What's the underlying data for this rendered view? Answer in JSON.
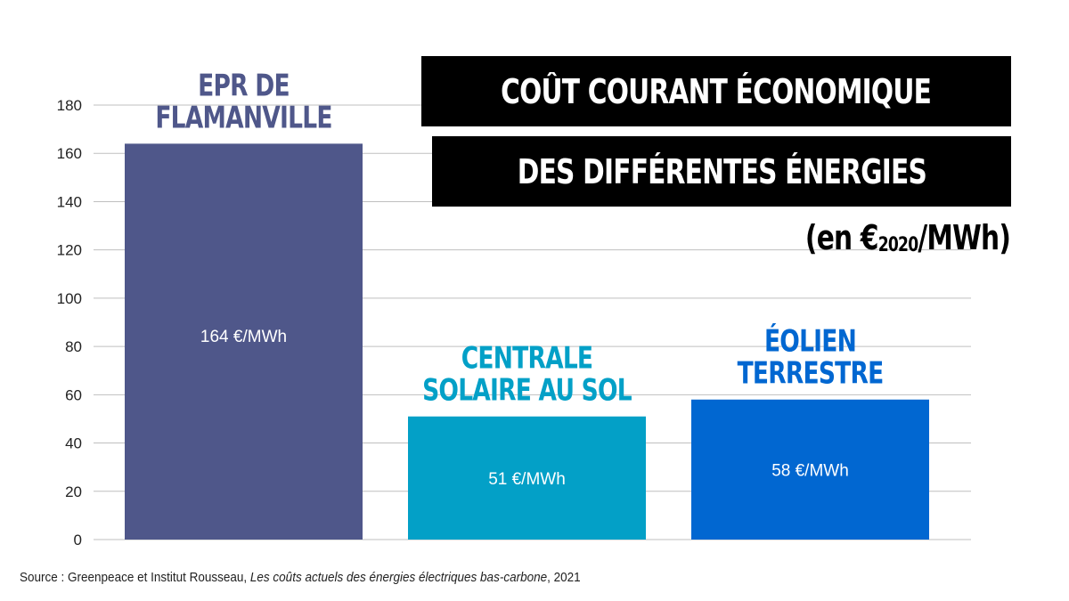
{
  "title": {
    "line1": "COÛT COURANT ÉCONOMIQUE",
    "line2": "DES DIFFÉRENTES ÉNERGIES",
    "unit_prefix": "(en €",
    "unit_sub": "2020",
    "unit_suffix": "/MWh)"
  },
  "source": {
    "prefix": "Source : Greenpeace et Institut Rousseau, ",
    "title": "Les coûts actuels des énergies électriques bas-carbone",
    "suffix": ", 2021"
  },
  "colors": {
    "epr": "#4f578a",
    "solaire": "#03a0c7",
    "eolien": "#0167d1",
    "grid": "#bfbfbf",
    "text": "#222222"
  },
  "chart_data": {
    "type": "bar",
    "categories": [
      [
        "EPR DE",
        "FLAMANVILLE"
      ],
      [
        "CENTRALE",
        "SOLAIRE AU SOL"
      ],
      [
        "ÉOLIEN",
        "TERRESTRE"
      ]
    ],
    "values": [
      164,
      51,
      58
    ],
    "data_labels": [
      "164 €/MWh",
      "51 €/MWh",
      "58 €/MWh"
    ],
    "ylim": [
      0,
      180
    ],
    "yticks": [
      0,
      20,
      40,
      60,
      80,
      100,
      120,
      140,
      160,
      180
    ],
    "grid": true,
    "bar_colors": [
      "#4f578a",
      "#03a0c7",
      "#0167d1"
    ]
  }
}
